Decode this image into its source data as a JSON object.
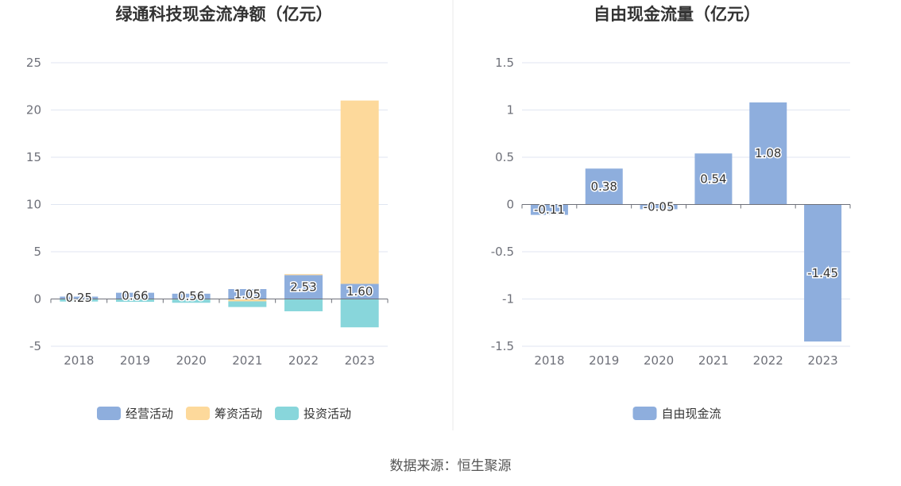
{
  "source_text": "数据来源：恒生聚源",
  "chart_data": [
    {
      "type": "bar",
      "title": "绿通科技现金流净额（亿元）",
      "categories": [
        "2018",
        "2019",
        "2020",
        "2021",
        "2022",
        "2023"
      ],
      "series": [
        {
          "name": "经营活动",
          "color": "#8eaedd",
          "values": [
            0.25,
            0.66,
            0.56,
            1.05,
            2.53,
            1.6
          ]
        },
        {
          "name": "筹资活动",
          "color": "#fdd99b",
          "values": [
            -0.02,
            -0.05,
            -0.05,
            -0.25,
            0.1,
            19.4
          ]
        },
        {
          "name": "投资活动",
          "color": "#88d6db",
          "values": [
            -0.25,
            -0.25,
            -0.35,
            -0.6,
            -1.3,
            -3.0
          ]
        }
      ],
      "data_labels": [
        "0.25",
        "0.66",
        "0.56",
        "1.05",
        "2.53",
        "1.60"
      ],
      "ylim": [
        -5,
        25
      ],
      "yticks": [
        "25",
        "20",
        "15",
        "10",
        "5",
        "0",
        "-5"
      ],
      "stacked": true,
      "grid": true,
      "legend_position": "bottom"
    },
    {
      "type": "bar",
      "title": "自由现金流量（亿元）",
      "categories": [
        "2018",
        "2019",
        "2020",
        "2021",
        "2022",
        "2023"
      ],
      "series": [
        {
          "name": "自由现金流",
          "color": "#8eaedd",
          "values": [
            -0.11,
            0.38,
            -0.05,
            0.54,
            1.08,
            -1.45
          ]
        }
      ],
      "data_labels": [
        "-0.11",
        "0.38",
        "-0.05",
        "0.54",
        "1.08",
        "-1.45"
      ],
      "ylim": [
        -1.5,
        1.5
      ],
      "yticks": [
        "1.5",
        "1",
        "0.5",
        "0",
        "-0.5",
        "-1",
        "-1.5"
      ],
      "grid": true,
      "legend_position": "bottom"
    }
  ]
}
